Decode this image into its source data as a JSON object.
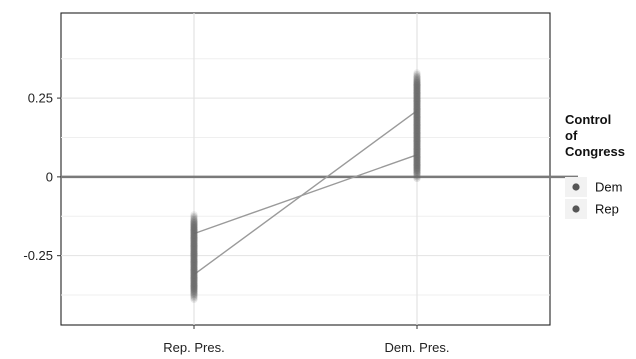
{
  "chart_data": {
    "type": "line",
    "title": "",
    "xlabel": "",
    "ylabel": "",
    "categories": [
      "Rep. Pres.",
      "Dem. Pres."
    ],
    "ylim": [
      -0.47,
      0.52
    ],
    "yticks": [
      -0.25,
      0,
      0.25
    ],
    "ytick_labels": [
      "-0.25",
      "0",
      "0.25"
    ],
    "grid": true,
    "reference_line_y": 0,
    "series": [
      {
        "name": "Dem",
        "values": [
          -0.18,
          0.07
        ]
      },
      {
        "name": "Rep",
        "values": [
          -0.31,
          0.21
        ]
      }
    ],
    "point_clouds": [
      {
        "category": "Rep. Pres.",
        "y_min": -0.39,
        "y_max": -0.12
      },
      {
        "category": "Dem. Pres.",
        "y_min": -0.01,
        "y_max": 0.33
      }
    ],
    "legend": {
      "title_lines": [
        "Control",
        "of",
        "Congress"
      ],
      "entries": [
        "Dem",
        "Rep"
      ],
      "placement": "right"
    },
    "colors": {
      "line": "#9a9a9a",
      "points": "#6a6a6a",
      "zero_line": "#7a7a7a",
      "grid": "#e3e3e3",
      "panel_bg": "#ffffff",
      "legend_key_bg": "#f2f2f2",
      "legend_point": "#555555"
    }
  }
}
